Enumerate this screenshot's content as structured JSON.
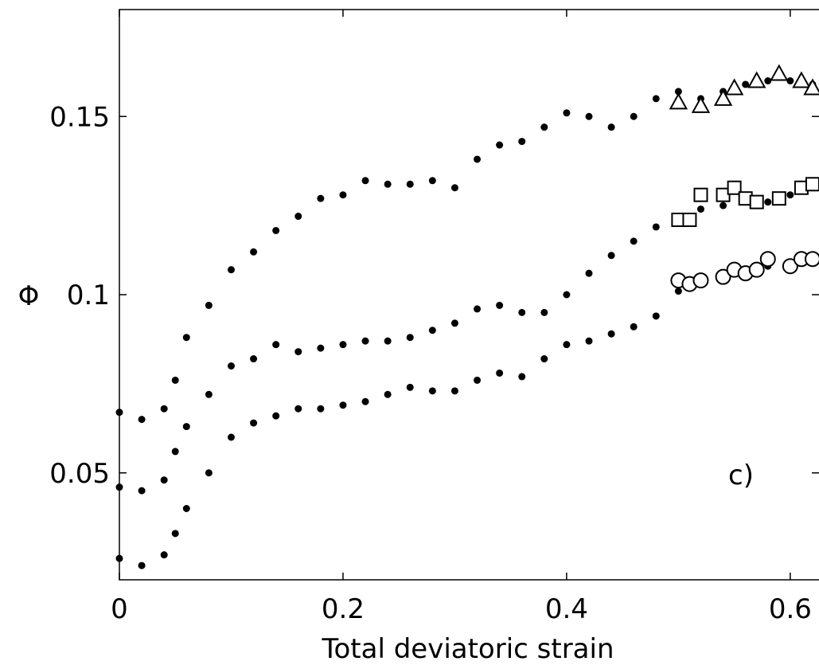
{
  "chart_data": {
    "type": "scatter",
    "title": "",
    "xlabel": "Total deviatoric strain",
    "ylabel": "Φ",
    "xlim": [
      0,
      0.63
    ],
    "ylim": [
      0.02,
      0.18
    ],
    "xticks": [
      0,
      0.2,
      0.4,
      0.6
    ],
    "xtick_labels": [
      "0",
      "0.2",
      "0.4",
      "0.6"
    ],
    "yticks": [
      0.05,
      0.1,
      0.15
    ],
    "ytick_labels": [
      "0.05",
      "0.1",
      "0.15"
    ],
    "grid": false,
    "panel_label": "c)",
    "series": [
      {
        "marker": "dot",
        "x": [
          0,
          0.02,
          0.04,
          0.05,
          0.06,
          0.08,
          0.1,
          0.12,
          0.14,
          0.16,
          0.18,
          0.2,
          0.22,
          0.24,
          0.26,
          0.28,
          0.3,
          0.32,
          0.34,
          0.36,
          0.38,
          0.4,
          0.42,
          0.44,
          0.46,
          0.48,
          0.5,
          0.52,
          0.54,
          0.56,
          0.58,
          0.6,
          0.62
        ],
        "y": [
          0.067,
          0.065,
          0.068,
          0.076,
          0.088,
          0.097,
          0.107,
          0.112,
          0.118,
          0.122,
          0.127,
          0.128,
          0.132,
          0.131,
          0.131,
          0.132,
          0.13,
          0.138,
          0.142,
          0.143,
          0.147,
          0.151,
          0.15,
          0.147,
          0.15,
          0.155,
          0.157,
          0.155,
          0.157,
          0.159,
          0.16,
          0.16,
          0.159
        ]
      },
      {
        "marker": "dot",
        "x": [
          0,
          0.02,
          0.04,
          0.05,
          0.06,
          0.08,
          0.1,
          0.12,
          0.14,
          0.16,
          0.18,
          0.2,
          0.22,
          0.24,
          0.26,
          0.28,
          0.3,
          0.32,
          0.34,
          0.36,
          0.38,
          0.4,
          0.42,
          0.44,
          0.46,
          0.48,
          0.5,
          0.52,
          0.54,
          0.56,
          0.58,
          0.6,
          0.62
        ],
        "y": [
          0.046,
          0.045,
          0.048,
          0.056,
          0.063,
          0.072,
          0.08,
          0.082,
          0.086,
          0.084,
          0.085,
          0.086,
          0.087,
          0.087,
          0.088,
          0.09,
          0.092,
          0.096,
          0.097,
          0.095,
          0.095,
          0.1,
          0.106,
          0.111,
          0.115,
          0.119,
          0.122,
          0.124,
          0.125,
          0.127,
          0.126,
          0.128,
          0.13
        ]
      },
      {
        "marker": "dot",
        "x": [
          0,
          0.02,
          0.04,
          0.05,
          0.06,
          0.08,
          0.1,
          0.12,
          0.14,
          0.16,
          0.18,
          0.2,
          0.22,
          0.24,
          0.26,
          0.28,
          0.3,
          0.32,
          0.34,
          0.36,
          0.38,
          0.4,
          0.42,
          0.44,
          0.46,
          0.48,
          0.5,
          0.52,
          0.54,
          0.56,
          0.58,
          0.6,
          0.62
        ],
        "y": [
          0.026,
          0.024,
          0.027,
          0.033,
          0.04,
          0.05,
          0.06,
          0.064,
          0.066,
          0.068,
          0.068,
          0.069,
          0.07,
          0.072,
          0.074,
          0.073,
          0.073,
          0.076,
          0.078,
          0.077,
          0.082,
          0.086,
          0.087,
          0.089,
          0.091,
          0.094,
          0.101,
          0.104,
          0.105,
          0.107,
          0.108,
          0.109,
          0.11
        ]
      },
      {
        "marker": "triangle",
        "x": [
          0.5,
          0.52,
          0.54,
          0.55,
          0.57,
          0.59,
          0.61,
          0.62
        ],
        "y": [
          0.154,
          0.153,
          0.155,
          0.158,
          0.16,
          0.162,
          0.16,
          0.158
        ]
      },
      {
        "marker": "square",
        "x": [
          0.5,
          0.51,
          0.52,
          0.54,
          0.55,
          0.56,
          0.57,
          0.59,
          0.61,
          0.62
        ],
        "y": [
          0.121,
          0.121,
          0.128,
          0.128,
          0.13,
          0.127,
          0.126,
          0.127,
          0.13,
          0.131
        ]
      },
      {
        "marker": "circle",
        "x": [
          0.5,
          0.51,
          0.52,
          0.54,
          0.55,
          0.56,
          0.57,
          0.58,
          0.6,
          0.61,
          0.62
        ],
        "y": [
          0.104,
          0.103,
          0.104,
          0.105,
          0.107,
          0.106,
          0.107,
          0.11,
          0.108,
          0.11,
          0.11
        ]
      }
    ]
  }
}
